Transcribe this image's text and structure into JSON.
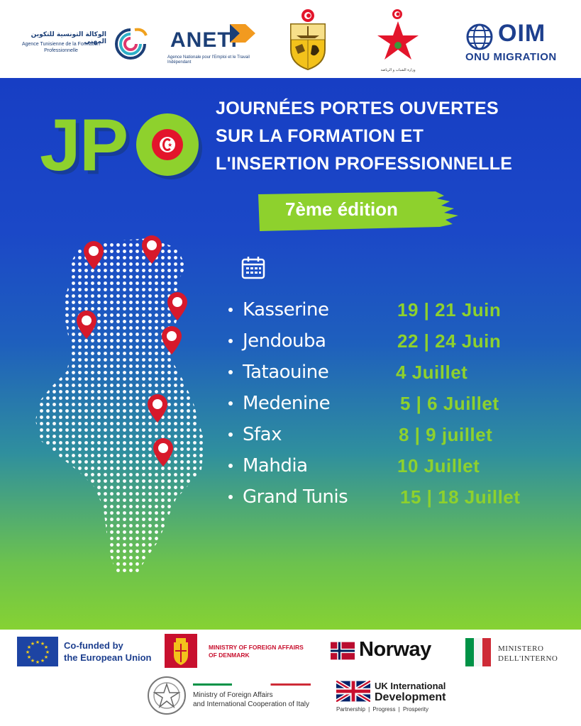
{
  "partners_top": {
    "atfp_arabic": "الوكالة التونسية للتكوين المهني",
    "atfp_french": "Agence Tunisienne de la Formation Professionnelle",
    "aneti_word": "ANETI",
    "aneti_sub": "Agence Nationale pour l'Emploi et le Travail Indépendant",
    "youth_ministry_caption": "وزارة الشباب و الرياضة",
    "oim_name": "OIM",
    "oim_sub": "ONU MIGRATION"
  },
  "poster": {
    "logo_text": "JP",
    "title_lines": [
      "JOURNÉES PORTES OUVERTES",
      "SUR LA FORMATION ET",
      "L'INSERTION PROFESSIONNELLE"
    ],
    "edition": "7ème édition",
    "schedule": [
      {
        "city": "Kasserine",
        "date": "19 | 21 Juin"
      },
      {
        "city": "Jendouba",
        "date": "22 | 24 Juin"
      },
      {
        "city": "Tataouine",
        "date": "4 Juillet"
      },
      {
        "city": "Medenine",
        "date": "5 | 6 Juillet"
      },
      {
        "city": "Sfax",
        "date": "8 | 9 juillet"
      },
      {
        "city": "Mahdia",
        "date": "10 Juillet"
      },
      {
        "city": "Grand Tunis",
        "date": "15 | 18 Juillet"
      }
    ]
  },
  "partners_bottom": {
    "eu_line1": "Co-funded by",
    "eu_line2": "the European Union",
    "denmark_line1": "MINISTRY OF FOREIGN AFFAIRS",
    "denmark_line2": "OF DENMARK",
    "norway": "Norway",
    "italy_interior_line1": "MINISTERO",
    "italy_interior_line2": "DELL'INTERNO",
    "italy_mfa_line1": "Ministry of Foreign Affairs",
    "italy_mfa_line2": "and International Cooperation of Italy",
    "uk_line1": "UK International",
    "uk_line2": "Development",
    "uk_tagline": "Partnership  |  Progress  |  Prosperity"
  },
  "colors": {
    "accent_green": "#8ed12d",
    "poster_blue": "#173ec4",
    "pin_red": "#d7192b"
  }
}
